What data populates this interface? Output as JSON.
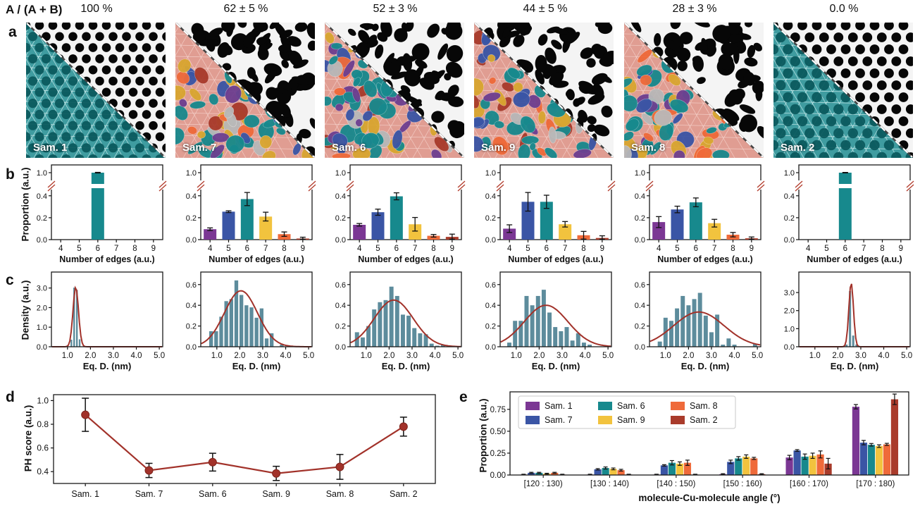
{
  "header": {
    "ratio_label": "A / (A + B)",
    "percentages": [
      "100 %",
      "62 ± 5 %",
      "52 ± 3 %",
      "44 ± 5 %",
      "28 ± 3 %",
      "0.0 %"
    ]
  },
  "panel_labels": {
    "a": "a",
    "b": "b",
    "c": "c",
    "d": "d",
    "e": "e"
  },
  "colors": {
    "purple": "#7b3794",
    "blue": "#3a55a5",
    "teal": "#17898d",
    "yellow": "#f2c33e",
    "orange": "#ef6a3a",
    "brick": "#a93b2b",
    "hist_bar": "#5d8c9c",
    "curve": "#a2322a",
    "gray_blob": "#b8b8b8",
    "gold_blob": "#d9a630",
    "break_mark": "#b23b2b",
    "edge_palette": [
      "#7b3794",
      "#3a55a5",
      "#17898d",
      "#f2c33e",
      "#ef6a3a",
      "#a93b2b"
    ]
  },
  "micrographs": [
    {
      "label": "Sam. 1",
      "pattern": "ordered",
      "overlay": "teal-lattice",
      "seed": 1
    },
    {
      "label": "Sam. 7",
      "pattern": "disordered",
      "overlay": "multicolor",
      "seed": 7
    },
    {
      "label": "Sam. 6",
      "pattern": "disordered",
      "overlay": "multicolor",
      "seed": 6
    },
    {
      "label": "Sam. 9",
      "pattern": "disordered",
      "overlay": "multicolor",
      "seed": 9
    },
    {
      "label": "Sam. 8",
      "pattern": "disordered",
      "overlay": "multicolor",
      "seed": 8
    },
    {
      "label": "Sam. 2",
      "pattern": "ordered",
      "overlay": "teal-lattice",
      "seed": 2
    }
  ],
  "chart_data": [
    {
      "id": "b1",
      "type": "edge_bar",
      "sample": "Sam. 1",
      "categories": [
        4,
        5,
        6,
        7,
        8,
        9
      ],
      "values": [
        0,
        0,
        1.0,
        0,
        0,
        0
      ],
      "errors": [
        0,
        0,
        0.01,
        0,
        0,
        0
      ],
      "xlabel": "Number of edges (a.u.)",
      "ylabel": "Proportion (a.u.)",
      "yticks": [
        [
          0,
          "0.0"
        ],
        [
          0.2,
          "0.2"
        ],
        [
          0.4,
          "0.4"
        ]
      ],
      "ytop": [
        1.0,
        "1.0"
      ],
      "broken_axis": true
    },
    {
      "id": "b2",
      "type": "edge_bar",
      "sample": "Sam. 7",
      "categories": [
        4,
        5,
        6,
        7,
        8,
        9
      ],
      "values": [
        0.095,
        0.255,
        0.37,
        0.21,
        0.05,
        0.01
      ],
      "errors": [
        0.012,
        0.008,
        0.06,
        0.04,
        0.02,
        0.012
      ],
      "xlabel": "Number of edges (a.u.)",
      "ylabel": "Proportion (a.u.)",
      "yticks": [
        [
          0,
          "0.0"
        ],
        [
          0.2,
          "0.2"
        ],
        [
          0.4,
          "0.4"
        ]
      ],
      "ytop": [
        1.0,
        "1.0"
      ],
      "broken_axis": true
    },
    {
      "id": "b3",
      "type": "edge_bar",
      "sample": "Sam. 6",
      "categories": [
        4,
        5,
        6,
        7,
        8,
        9
      ],
      "values": [
        0.135,
        0.25,
        0.395,
        0.14,
        0.035,
        0.025
      ],
      "errors": [
        0.012,
        0.028,
        0.032,
        0.062,
        0.012,
        0.025
      ],
      "xlabel": "Number of edges (a.u.)",
      "ylabel": "Proportion (a.u.)",
      "yticks": [
        [
          0,
          "0.0"
        ],
        [
          0.2,
          "0.2"
        ],
        [
          0.4,
          "0.4"
        ]
      ],
      "ytop": [
        1.0,
        "1.0"
      ],
      "broken_axis": true
    },
    {
      "id": "b4",
      "type": "edge_bar",
      "sample": "Sam. 9",
      "categories": [
        4,
        5,
        6,
        7,
        8,
        9
      ],
      "values": [
        0.1,
        0.345,
        0.345,
        0.14,
        0.04,
        0.015
      ],
      "errors": [
        0.035,
        0.085,
        0.06,
        0.025,
        0.035,
        0.02
      ],
      "xlabel": "Number of edges (a.u.)",
      "ylabel": "Proportion (a.u.)",
      "yticks": [
        [
          0,
          "0.0"
        ],
        [
          0.2,
          "0.2"
        ],
        [
          0.4,
          "0.4"
        ]
      ],
      "ytop": [
        1.0,
        "1.0"
      ],
      "broken_axis": true
    },
    {
      "id": "b5",
      "type": "edge_bar",
      "sample": "Sam. 8",
      "categories": [
        4,
        5,
        6,
        7,
        8,
        9
      ],
      "values": [
        0.16,
        0.275,
        0.34,
        0.15,
        0.045,
        0.012
      ],
      "errors": [
        0.05,
        0.03,
        0.04,
        0.035,
        0.02,
        0.012
      ],
      "xlabel": "Number of edges (a.u.)",
      "ylabel": "Proportion (a.u.)",
      "yticks": [
        [
          0,
          "0.0"
        ],
        [
          0.2,
          "0.2"
        ],
        [
          0.4,
          "0.4"
        ]
      ],
      "ytop": [
        1.0,
        "1.0"
      ],
      "broken_axis": true
    },
    {
      "id": "b6",
      "type": "edge_bar",
      "sample": "Sam. 2",
      "categories": [
        4,
        5,
        6,
        7,
        8,
        9
      ],
      "values": [
        0,
        0,
        1.0,
        0,
        0,
        0
      ],
      "errors": [
        0,
        0,
        0.008,
        0,
        0,
        0
      ],
      "xlabel": "Number of edges (a.u.)",
      "ylabel": "Proportion (a.u.)",
      "yticks": [
        [
          0,
          "0.0"
        ],
        [
          0.2,
          "0.2"
        ],
        [
          0.4,
          "0.4"
        ]
      ],
      "ytop": [
        1.0,
        "1.0"
      ],
      "broken_axis": true
    },
    {
      "id": "c1",
      "type": "histogram",
      "sample": "Sam. 1",
      "bar_width": 0.11,
      "bars": [
        [
          1.17,
          0.36
        ],
        [
          1.29,
          3.02
        ],
        [
          1.41,
          2.9
        ],
        [
          1.53,
          0.38
        ]
      ],
      "curve": {
        "mu": 1.36,
        "sigma": 0.12,
        "peak": 3.05
      },
      "ymax": 3.6,
      "yticks": [
        [
          0,
          "0.0"
        ],
        [
          1,
          "1.0"
        ],
        [
          2,
          "2.0"
        ],
        [
          3,
          "3.0"
        ]
      ],
      "xticks": [
        [
          1,
          "1.0"
        ],
        [
          2,
          "2.0"
        ],
        [
          3,
          "3.0"
        ],
        [
          4,
          "4.0"
        ],
        [
          5,
          "5.0"
        ]
      ],
      "xlabel": "Eq. D. (nm)",
      "ylabel": "Density (a.u.)"
    },
    {
      "id": "c2",
      "type": "histogram",
      "sample": "Sam. 7",
      "bar_width": 0.2,
      "bars": [
        [
          0.75,
          0.15
        ],
        [
          0.97,
          0.15
        ],
        [
          1.19,
          0.29
        ],
        [
          1.41,
          0.44
        ],
        [
          1.63,
          0.46
        ],
        [
          1.85,
          0.64
        ],
        [
          2.07,
          0.5
        ],
        [
          2.29,
          0.4
        ],
        [
          2.51,
          0.38
        ],
        [
          2.73,
          0.28
        ],
        [
          2.95,
          0.37
        ],
        [
          3.17,
          0.08
        ],
        [
          3.39,
          0.13
        ],
        [
          3.83,
          0.02
        ]
      ],
      "curve": {
        "mu": 2.05,
        "sigma": 0.72,
        "peak": 0.54
      },
      "ymax": 0.68,
      "yticks": [
        [
          0,
          "0.0"
        ],
        [
          0.2,
          "0.2"
        ],
        [
          0.4,
          "0.4"
        ],
        [
          0.6,
          "0.6"
        ]
      ],
      "xticks": [
        [
          1,
          "1.0"
        ],
        [
          2,
          "2.0"
        ],
        [
          3,
          "3.0"
        ],
        [
          4,
          "4.0"
        ],
        [
          5,
          "5.0"
        ]
      ],
      "xlabel": "Eq. D. (nm)",
      "ylabel": "Density (a.u.)"
    },
    {
      "id": "c3",
      "type": "histogram",
      "sample": "Sam. 6",
      "bar_width": 0.22,
      "bars": [
        [
          0.6,
          0.14
        ],
        [
          0.85,
          0.09
        ],
        [
          1.1,
          0.2
        ],
        [
          1.35,
          0.36
        ],
        [
          1.6,
          0.43
        ],
        [
          1.85,
          0.45
        ],
        [
          2.1,
          0.58
        ],
        [
          2.35,
          0.49
        ],
        [
          2.6,
          0.31
        ],
        [
          2.85,
          0.3
        ],
        [
          3.1,
          0.18
        ],
        [
          3.35,
          0.13
        ],
        [
          3.6,
          0.12
        ],
        [
          3.85,
          0.03
        ],
        [
          4.1,
          0.01
        ],
        [
          4.35,
          0.02
        ]
      ],
      "curve": {
        "mu": 2.2,
        "sigma": 0.85,
        "peak": 0.45
      },
      "ymax": 0.68,
      "yticks": [
        [
          0,
          "0.0"
        ],
        [
          0.2,
          "0.2"
        ],
        [
          0.4,
          "0.4"
        ],
        [
          0.6,
          "0.6"
        ]
      ],
      "xticks": [
        [
          1,
          "1.0"
        ],
        [
          2,
          "2.0"
        ],
        [
          3,
          "3.0"
        ],
        [
          4,
          "4.0"
        ],
        [
          5,
          "5.0"
        ]
      ],
      "xlabel": "Eq. D. (nm)",
      "ylabel": "Density (a.u.)"
    },
    {
      "id": "c4",
      "type": "histogram",
      "sample": "Sam. 9",
      "bar_width": 0.22,
      "bars": [
        [
          0.7,
          0.04
        ],
        [
          0.95,
          0.25
        ],
        [
          1.2,
          0.25
        ],
        [
          1.45,
          0.49
        ],
        [
          1.7,
          0.4
        ],
        [
          1.95,
          0.49
        ],
        [
          2.2,
          0.55
        ],
        [
          2.45,
          0.33
        ],
        [
          2.7,
          0.19
        ],
        [
          2.95,
          0.15
        ],
        [
          3.2,
          0.19
        ],
        [
          3.45,
          0.06
        ],
        [
          3.7,
          0.13
        ],
        [
          3.95,
          0.04
        ],
        [
          4.2,
          0.02
        ]
      ],
      "curve": {
        "mu": 2.3,
        "sigma": 0.95,
        "peak": 0.4
      },
      "ymax": 0.68,
      "yticks": [
        [
          0,
          "0.0"
        ],
        [
          0.2,
          "0.2"
        ],
        [
          0.4,
          "0.4"
        ],
        [
          0.6,
          "0.6"
        ]
      ],
      "xticks": [
        [
          1,
          "1.0"
        ],
        [
          2,
          "2.0"
        ],
        [
          3,
          "3.0"
        ],
        [
          4,
          "4.0"
        ],
        [
          5,
          "5.0"
        ]
      ],
      "xlabel": "Eq. D. (nm)",
      "ylabel": "Density (a.u.)"
    },
    {
      "id": "c5",
      "type": "histogram",
      "sample": "Sam. 8",
      "bar_width": 0.22,
      "bars": [
        [
          0.75,
          0.05
        ],
        [
          1.0,
          0.28
        ],
        [
          1.25,
          0.25
        ],
        [
          1.5,
          0.37
        ],
        [
          1.75,
          0.49
        ],
        [
          2.0,
          0.4
        ],
        [
          2.25,
          0.46
        ],
        [
          2.5,
          0.52
        ],
        [
          2.75,
          0.3
        ],
        [
          3.0,
          0.14
        ],
        [
          3.25,
          0.31
        ],
        [
          3.5,
          0.02
        ],
        [
          3.75,
          0.08
        ],
        [
          4.0,
          0.02
        ],
        [
          4.9,
          0.03
        ]
      ],
      "curve": {
        "mu": 2.45,
        "sigma": 1.1,
        "peak": 0.335
      },
      "ymax": 0.68,
      "yticks": [
        [
          0,
          "0.0"
        ],
        [
          0.2,
          "0.2"
        ],
        [
          0.4,
          "0.4"
        ],
        [
          0.6,
          "0.6"
        ]
      ],
      "xticks": [
        [
          1,
          "1.0"
        ],
        [
          2,
          "2.0"
        ],
        [
          3,
          "3.0"
        ],
        [
          4,
          "4.0"
        ],
        [
          5,
          "5.0"
        ]
      ],
      "xlabel": "Eq. D. (nm)",
      "ylabel": "Density (a.u.)"
    },
    {
      "id": "c6",
      "type": "histogram",
      "sample": "Sam. 2",
      "bar_width": 0.13,
      "bars": [
        [
          2.38,
          0.12
        ],
        [
          2.53,
          3.08
        ],
        [
          2.67,
          0.62
        ],
        [
          2.81,
          0.12
        ]
      ],
      "curve": {
        "mu": 2.58,
        "sigma": 0.1,
        "peak": 3.55
      },
      "ymax": 3.9,
      "yticks": [
        [
          0,
          "0.0"
        ],
        [
          1,
          "1.0"
        ],
        [
          2,
          "2.0"
        ],
        [
          3,
          "3.0"
        ]
      ],
      "xticks": [
        [
          1,
          "1.0"
        ],
        [
          2,
          "2.0"
        ],
        [
          3,
          "3.0"
        ],
        [
          4,
          "4.0"
        ],
        [
          5,
          "5.0"
        ]
      ],
      "xlabel": "Eq. D. (nm)",
      "ylabel": "Density (a.u.)"
    },
    {
      "id": "d",
      "type": "line",
      "ylabel": "PH score (a.u.)",
      "categories": [
        "Sam. 1",
        "Sam. 7",
        "Sam. 6",
        "Sam. 9",
        "Sam. 8",
        "Sam. 2"
      ],
      "values": [
        0.88,
        0.41,
        0.48,
        0.385,
        0.44,
        0.78
      ],
      "errors": [
        0.14,
        0.06,
        0.075,
        0.06,
        0.105,
        0.08
      ],
      "yticks": [
        [
          0.4,
          "0.4"
        ],
        [
          0.6,
          "0.6"
        ],
        [
          0.8,
          "0.8"
        ],
        [
          1.0,
          "1.0"
        ]
      ],
      "ylim": [
        0.3,
        1.05
      ]
    },
    {
      "id": "e",
      "type": "grouped_bar",
      "ylabel": "Proportion (a.u.)",
      "xlabel": "molecule-Cu-molecule angle (°)",
      "categories": [
        "[120 : 130)",
        "[130 : 140)",
        "[140 : 150)",
        "[150 : 160)",
        "[160 : 170)",
        "[170 : 180)"
      ],
      "yticks": [
        [
          0,
          "0.00"
        ],
        [
          0.25,
          "0.25"
        ],
        [
          0.5,
          "0.50"
        ],
        [
          0.75,
          "0.75"
        ]
      ],
      "ylim": [
        0,
        0.95
      ],
      "series": [
        {
          "name": "Sam. 1",
          "color": "#7b3794",
          "values": [
            0.005,
            0.005,
            0.005,
            0.01,
            0.2,
            0.78
          ],
          "errors": [
            0.004,
            0.004,
            0.004,
            0.005,
            0.025,
            0.025
          ]
        },
        {
          "name": "Sam. 7",
          "color": "#3a55a5",
          "values": [
            0.025,
            0.065,
            0.11,
            0.15,
            0.28,
            0.37
          ],
          "errors": [
            0.006,
            0.008,
            0.008,
            0.02,
            0.01,
            0.025
          ]
        },
        {
          "name": "Sam. 6",
          "color": "#17898d",
          "values": [
            0.025,
            0.08,
            0.14,
            0.19,
            0.21,
            0.345
          ],
          "errors": [
            0.006,
            0.012,
            0.025,
            0.02,
            0.03,
            0.015
          ]
        },
        {
          "name": "Sam. 9",
          "color": "#f2c33e",
          "values": [
            0.015,
            0.07,
            0.13,
            0.21,
            0.22,
            0.33
          ],
          "errors": [
            0.005,
            0.01,
            0.02,
            0.02,
            0.03,
            0.015
          ]
        },
        {
          "name": "Sam. 8",
          "color": "#ef6a3a",
          "values": [
            0.025,
            0.055,
            0.14,
            0.19,
            0.235,
            0.35
          ],
          "errors": [
            0.006,
            0.01,
            0.03,
            0.012,
            0.04,
            0.012
          ]
        },
        {
          "name": "Sam. 2",
          "color": "#a93b2b",
          "values": [
            0.005,
            0.005,
            0.005,
            0.01,
            0.13,
            0.865
          ],
          "errors": [
            0.004,
            0.004,
            0.004,
            0.005,
            0.06,
            0.06
          ]
        }
      ],
      "legend_position": "top-left"
    }
  ]
}
